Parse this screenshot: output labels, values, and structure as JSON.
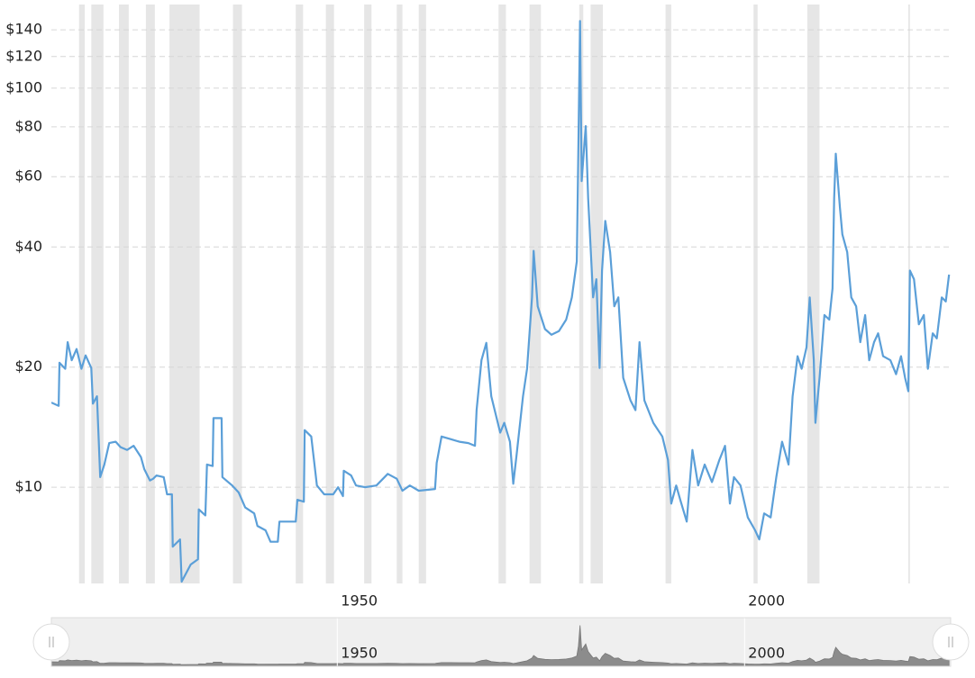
{
  "chart_data": {
    "type": "line",
    "color": "#5b9fd8",
    "log_scale": true,
    "grid": true,
    "recession_color": "#e6e6e6",
    "xlim": [
      1914.9,
      2025.3
    ],
    "xticks": [
      1950,
      2000
    ],
    "ylim": [
      5.74,
      162
    ],
    "yticks": [
      {
        "value": 10,
        "label": "$10"
      },
      {
        "value": 20,
        "label": "$20"
      },
      {
        "value": 40,
        "label": "$40"
      },
      {
        "value": 60,
        "label": "$60"
      },
      {
        "value": 80,
        "label": "$80"
      },
      {
        "value": 100,
        "label": "$100"
      },
      {
        "value": 120,
        "label": "$120"
      },
      {
        "value": 140,
        "label": "$140"
      }
    ],
    "recessions": [
      [
        1918.3,
        1919.0
      ],
      [
        1919.8,
        1921.3
      ],
      [
        1923.2,
        1924.4
      ],
      [
        1926.5,
        1927.6
      ],
      [
        1929.4,
        1933.1
      ],
      [
        1937.2,
        1938.3
      ],
      [
        1944.9,
        1945.8
      ],
      [
        1948.6,
        1949.6
      ],
      [
        1953.3,
        1954.2
      ],
      [
        1957.3,
        1958.0
      ],
      [
        1960.0,
        1960.9
      ],
      [
        1969.8,
        1970.7
      ],
      [
        1973.6,
        1975.0
      ],
      [
        1979.7,
        1980.2
      ],
      [
        1981.1,
        1982.6
      ],
      [
        1990.3,
        1991.0
      ],
      [
        2001.1,
        2001.6
      ],
      [
        2007.7,
        2009.2
      ],
      [
        2020.1,
        2020.3
      ]
    ],
    "x": [
      1914.9,
      1915.8,
      1915.9,
      1916.6,
      1916.9,
      1917.4,
      1918.0,
      1918.6,
      1919.1,
      1919.8,
      1920.0,
      1920.5,
      1920.9,
      1921.4,
      1922.0,
      1922.8,
      1923.4,
      1924.2,
      1925.0,
      1925.9,
      1926.3,
      1927.0,
      1927.4,
      1927.8,
      1928.7,
      1929.1,
      1929.7,
      1929.8,
      1930.7,
      1930.9,
      1932.0,
      1932.9,
      1933.0,
      1933.8,
      1934.0,
      1934.7,
      1934.8,
      1935.8,
      1935.9,
      1937.1,
      1937.9,
      1938.7,
      1939.8,
      1940.2,
      1941.2,
      1941.8,
      1942.7,
      1942.9,
      1944.9,
      1945.1,
      1945.9,
      1946.0,
      1946.8,
      1947.5,
      1948.4,
      1949.5,
      1950.1,
      1950.7,
      1950.8,
      1951.7,
      1952.3,
      1953.4,
      1954.8,
      1956.2,
      1957.3,
      1958.0,
      1958.9,
      1960.0,
      1962.0,
      1962.2,
      1962.8,
      1963.9,
      1965.0,
      1966.1,
      1966.9,
      1967.1,
      1967.7,
      1968.3,
      1968.9,
      1970.0,
      1970.5,
      1971.2,
      1971.6,
      1972.0,
      1972.8,
      1973.3,
      1973.9,
      1974.1,
      1974.6,
      1975.5,
      1976.3,
      1977.2,
      1978.1,
      1978.8,
      1979.4,
      1979.6,
      1979.8,
      1980.0,
      1980.5,
      1980.8,
      1981.4,
      1981.8,
      1982.2,
      1982.5,
      1982.9,
      1983.5,
      1984.0,
      1984.5,
      1985.1,
      1986.0,
      1986.6,
      1987.1,
      1987.7,
      1988.8,
      1989.9,
      1990.6,
      1991.0,
      1991.6,
      1992.1,
      1992.9,
      1993.6,
      1994.3,
      1995.1,
      1996.0,
      1996.9,
      1997.6,
      1998.2,
      1998.7,
      1999.5,
      2000.4,
      2001.3,
      2001.8,
      2002.4,
      2003.2,
      2003.9,
      2004.6,
      2005.4,
      2005.9,
      2006.5,
      2007.0,
      2007.6,
      2008.0,
      2008.5,
      2008.7,
      2009.2,
      2009.8,
      2010.4,
      2010.8,
      2011.0,
      2011.2,
      2011.7,
      2012.0,
      2012.6,
      2013.1,
      2013.7,
      2014.2,
      2014.8,
      2015.3,
      2015.9,
      2016.4,
      2017.0,
      2017.9,
      2018.6,
      2019.2,
      2019.7,
      2020.1,
      2020.3,
      2020.8,
      2021.4,
      2022.0,
      2022.5,
      2023.1,
      2023.6,
      2024.2,
      2024.7,
      2025.1
    ],
    "values": [
      16.3,
      16.0,
      20.5,
      19.8,
      23.1,
      20.8,
      22.2,
      19.8,
      21.4,
      19.9,
      16.2,
      16.9,
      10.6,
      11.4,
      12.9,
      13.0,
      12.6,
      12.4,
      12.7,
      11.9,
      11.1,
      10.4,
      10.5,
      10.7,
      10.6,
      9.6,
      9.6,
      7.1,
      7.4,
      5.8,
      6.4,
      6.6,
      8.8,
      8.5,
      11.4,
      11.3,
      14.9,
      14.9,
      10.6,
      10.1,
      9.7,
      8.9,
      8.6,
      8.0,
      7.8,
      7.3,
      7.3,
      8.2,
      8.2,
      9.3,
      9.2,
      13.9,
      13.4,
      10.1,
      9.6,
      9.6,
      10.0,
      9.5,
      11.0,
      10.7,
      10.1,
      10.0,
      10.1,
      10.8,
      10.5,
      9.8,
      10.1,
      9.8,
      9.9,
      11.5,
      13.4,
      13.2,
      13.0,
      12.9,
      12.7,
      15.6,
      20.8,
      23.0,
      16.9,
      13.7,
      14.5,
      13.0,
      10.2,
      12.0,
      16.9,
      19.8,
      29.9,
      39.1,
      28.4,
      24.9,
      24.1,
      24.6,
      26.3,
      29.9,
      36.8,
      72.3,
      147.3,
      58.5,
      80.3,
      53.0,
      29.9,
      33.2,
      19.9,
      34.9,
      46.5,
      38.8,
      28.4,
      29.9,
      18.8,
      16.5,
      15.6,
      23.1,
      16.5,
      14.5,
      13.4,
      11.7,
      9.1,
      10.1,
      9.3,
      8.2,
      12.4,
      10.1,
      11.4,
      10.3,
      11.7,
      12.7,
      9.1,
      10.6,
      10.1,
      8.4,
      7.8,
      7.4,
      8.6,
      8.4,
      10.6,
      13.0,
      11.4,
      16.9,
      21.3,
      19.8,
      22.4,
      29.9,
      20.8,
      14.5,
      18.8,
      27.0,
      26.3,
      31.5,
      53.0,
      68.5,
      50.2,
      43.0,
      38.8,
      29.9,
      28.4,
      23.1,
      27.0,
      20.8,
      23.1,
      24.3,
      21.3,
      20.8,
      19.2,
      21.3,
      18.8,
      17.4,
      34.9,
      33.2,
      25.6,
      27.0,
      19.8,
      24.3,
      23.6,
      29.9,
      29.2,
      34.1
    ]
  }
}
